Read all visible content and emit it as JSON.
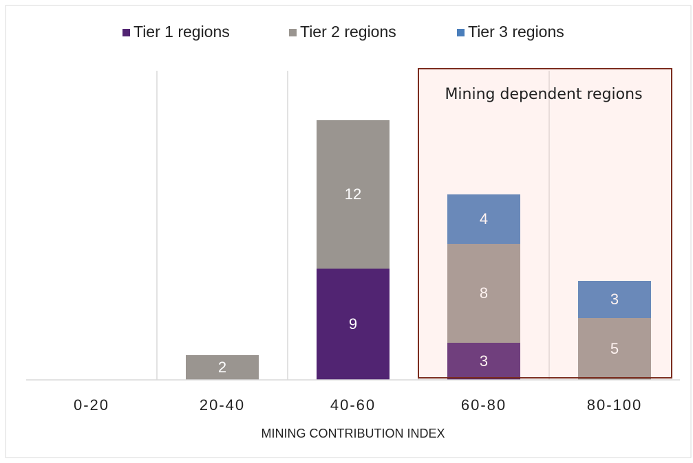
{
  "chart_data": {
    "type": "stacked_bar",
    "categories": [
      "0-20",
      "20-40",
      "40-60",
      "60-80",
      "80-100"
    ],
    "series": [
      {
        "name": "Tier 1 regions",
        "color": "#512472",
        "values": [
          null,
          null,
          9,
          3,
          null
        ]
      },
      {
        "name": "Tier 2 regions",
        "color": "#9a9590",
        "values": [
          null,
          2,
          12,
          8,
          5
        ]
      },
      {
        "name": "Tier 3 regions",
        "color": "#4a7ebb",
        "values": [
          null,
          null,
          null,
          4,
          3
        ]
      }
    ],
    "ylim": [
      0,
      25
    ],
    "x_label": "MINING CONTRIBUTION INDEX",
    "annotation": "Mining dependent regions",
    "legend": "top"
  }
}
